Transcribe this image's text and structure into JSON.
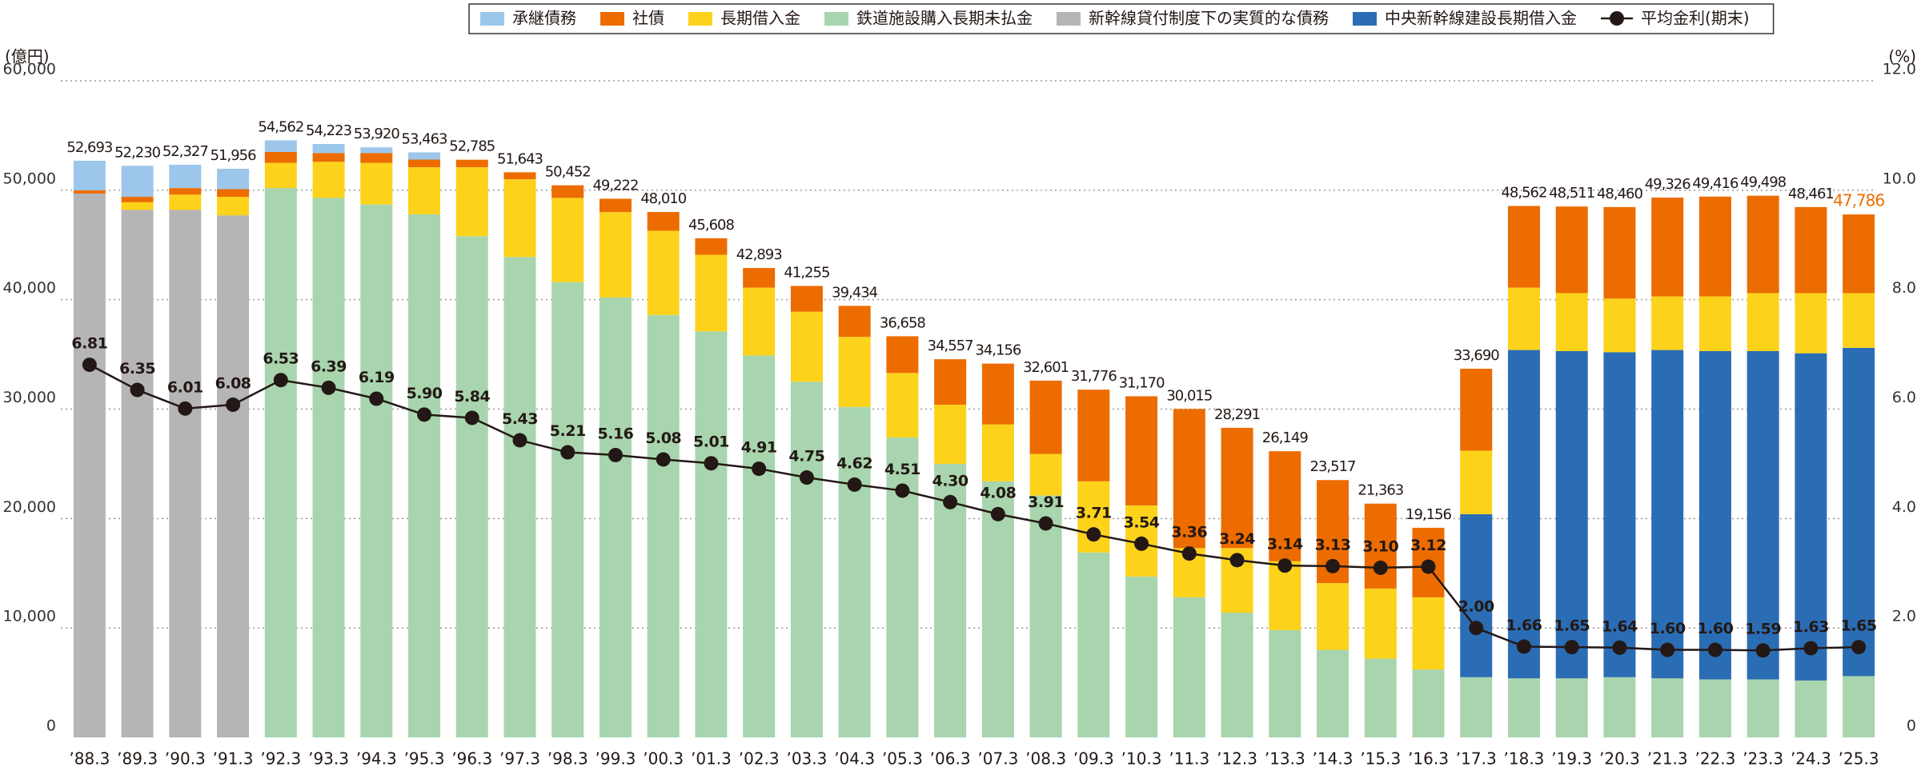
{
  "chart_data": {
    "type": "bar",
    "y_unit": "(億円)",
    "y2_unit": "(%)",
    "categories": [
      "’88.3",
      "’89.3",
      "’90.3",
      "’91.3",
      "’92.3",
      "’93.3",
      "’94.3",
      "’95.3",
      "’96.3",
      "’97.3",
      "’98.3",
      "’99.3",
      "’00.3",
      "’01.3",
      "’02.3",
      "’03.3",
      "’04.3",
      "’05.3",
      "’06.3",
      "’07.3",
      "’08.3",
      "’09.3",
      "’10.3",
      "’11.3",
      "’12.3",
      "’13.3",
      "’14.3",
      "’15.3",
      "’16.3",
      "’17.3",
      "’18.3",
      "’19.3",
      "’20.3",
      "’21.3",
      "’22.3",
      "’23.3",
      "’24.3",
      "’25.3"
    ],
    "series": [
      {
        "name": "承継債務",
        "color": "#9cc7ea",
        "values": [
          2693,
          2830,
          2127,
          1856,
          1062,
          823,
          520,
          663,
          null,
          null,
          null,
          null,
          null,
          null,
          null,
          null,
          null,
          null,
          null,
          null,
          null,
          null,
          null,
          null,
          null,
          null,
          null,
          null,
          null,
          null,
          null,
          null,
          null,
          null,
          null,
          null,
          null,
          null
        ]
      },
      {
        "name": "社債",
        "color": "#ec6c00",
        "values": [
          300,
          500,
          600,
          700,
          1000,
          800,
          900,
          700,
          685,
          643,
          1152,
          1222,
          1710,
          1508,
          1793,
          2355,
          2834,
          3358,
          4157,
          5556,
          6701,
          8376,
          9970,
          12715,
          10991,
          10049,
          9417,
          7763,
          6356,
          7490,
          7462,
          7911,
          8360,
          9026,
          9116,
          8898,
          7861,
          7186
        ]
      },
      {
        "name": "長期借入金",
        "color": "#fcd21b",
        "values": [
          null,
          700,
          1400,
          1700,
          2300,
          3300,
          3800,
          4300,
          6300,
          7100,
          7700,
          7800,
          7700,
          7000,
          6200,
          6400,
          6400,
          5900,
          5400,
          5200,
          3800,
          6500,
          6500,
          4500,
          5900,
          6300,
          6100,
          6400,
          6600,
          5800,
          5700,
          5300,
          4900,
          4900,
          5000,
          5300,
          5500,
          5000
        ]
      },
      {
        "name": "鉄道施設購入長期未払金",
        "color": "#a8d5ad",
        "values": [
          null,
          null,
          null,
          null,
          50200,
          49300,
          48700,
          47800,
          45800,
          43900,
          41600,
          40200,
          38600,
          37100,
          34900,
          32500,
          30200,
          27400,
          25000,
          23400,
          22100,
          16900,
          14700,
          12800,
          11400,
          9800,
          8000,
          7200,
          6200,
          5500,
          5400,
          5400,
          5500,
          5400,
          5300,
          5300,
          5200,
          5600
        ]
      },
      {
        "name": "新幹線貸付制度下の実質的な債務",
        "color": "#b5b5b5",
        "values": [
          49700,
          48200,
          48200,
          47700,
          null,
          null,
          null,
          null,
          null,
          null,
          null,
          null,
          null,
          null,
          null,
          null,
          null,
          null,
          null,
          null,
          null,
          null,
          null,
          null,
          null,
          null,
          null,
          null,
          null,
          null,
          null,
          null,
          null,
          null,
          null,
          null,
          null,
          null
        ]
      },
      {
        "name": "中央新幹線建設長期借入金",
        "color": "#2b6db5",
        "values": [
          null,
          null,
          null,
          null,
          null,
          null,
          null,
          null,
          null,
          null,
          null,
          null,
          null,
          null,
          null,
          null,
          null,
          null,
          null,
          null,
          null,
          null,
          null,
          null,
          null,
          null,
          null,
          null,
          null,
          14900,
          30000,
          29900,
          29700,
          30000,
          30000,
          30000,
          29900,
          30000
        ]
      },
      {
        "name": "平均金利(期末)",
        "type": "line",
        "axis": "y2",
        "color": "#231815",
        "values": [
          6.81,
          6.35,
          6.01,
          6.08,
          6.53,
          6.39,
          6.19,
          5.9,
          5.84,
          5.43,
          5.21,
          5.16,
          5.08,
          5.01,
          4.91,
          4.75,
          4.62,
          4.51,
          4.3,
          4.08,
          3.91,
          3.71,
          3.54,
          3.36,
          3.24,
          3.14,
          3.13,
          3.1,
          3.12,
          2.0,
          1.66,
          1.65,
          1.64,
          1.6,
          1.6,
          1.59,
          1.63,
          1.65
        ],
        "value_labels": [
          "6.81",
          "6.35",
          "6.01",
          "6.08",
          "6.53",
          "6.39",
          "6.19",
          "5.90",
          "5.84",
          "5.43",
          "5.21",
          "5.16",
          "5.08",
          "5.01",
          "4.91",
          "4.75",
          "4.62",
          "4.51",
          "4.30",
          "4.08",
          "3.91",
          "3.71",
          "3.54",
          "3.36",
          "3.24",
          "3.14",
          "3.13",
          "3.10",
          "3.12",
          "2.00",
          "1.66",
          "1.65",
          "1.64",
          "1.60",
          "1.60",
          "1.59",
          "1.63",
          "1.65"
        ]
      }
    ],
    "stack_order": [
      4,
      3,
      5,
      2,
      1,
      0
    ],
    "totals": [
      52693,
      52230,
      52327,
      51956,
      54562,
      54223,
      53920,
      53463,
      52785,
      51643,
      50452,
      49222,
      48010,
      45608,
      42893,
      41255,
      39434,
      36658,
      34557,
      34156,
      32601,
      31776,
      31170,
      30015,
      28291,
      26149,
      23517,
      21363,
      19156,
      33690,
      48562,
      48511,
      48460,
      49326,
      49416,
      49498,
      48461,
      47786
    ],
    "total_labels": [
      "52,693",
      "52,230",
      "52,327",
      "51,956",
      "54,562",
      "54,223",
      "53,920",
      "53,463",
      "52,785",
      "51,643",
      "50,452",
      "49,222",
      "48,010",
      "45,608",
      "42,893",
      "41,255",
      "39,434",
      "36,658",
      "34,557",
      "34,156",
      "32,601",
      "31,776",
      "31,170",
      "30,015",
      "28,291",
      "26,149",
      "23,517",
      "21,363",
      "19,156",
      "33,690",
      "48,562",
      "48,511",
      "48,460",
      "49,326",
      "49,416",
      "49,498",
      "48,461",
      "47,786"
    ],
    "last_total_color": "#ec6c00",
    "ylim": [
      0,
      60000
    ],
    "yticks": [
      0,
      {
        "value": 10000,
        "label": "10,000"
      },
      {
        "value": 20000,
        "label": "20,000"
      },
      {
        "value": 30000,
        "label": "30,000"
      },
      {
        "value": 40000,
        "label": "40,000"
      },
      {
        "value": 50000,
        "label": "50,000"
      },
      {
        "value": 60000,
        "label": "60,000"
      }
    ],
    "y2lim": [
      0,
      12
    ],
    "y2ticks": [
      0,
      {
        "value": 2,
        "label": "2.0"
      },
      {
        "value": 4,
        "label": "4.0"
      },
      {
        "value": 6,
        "label": "6.0"
      },
      {
        "value": 8,
        "label": "8.0"
      },
      {
        "value": 10,
        "label": "10.0"
      },
      {
        "value": 12,
        "label": "12.0"
      }
    ],
    "grid": true,
    "legend": "top-right"
  }
}
